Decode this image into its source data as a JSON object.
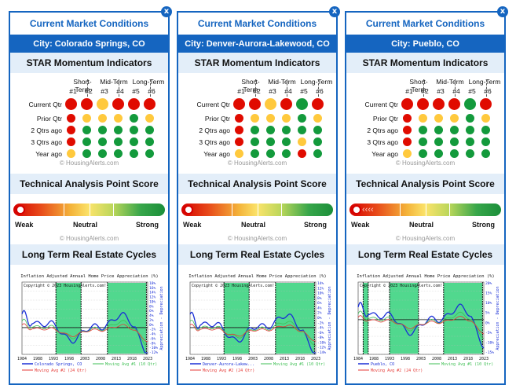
{
  "close_glyph": "x",
  "cards": [
    {
      "header": "Current Market Conditions",
      "city": "City: Colorado Springs, CO",
      "star_title": "STAR Momentum Indicators",
      "term_labels": [
        "Short-Term",
        "Mid-Term",
        "Long-Term"
      ],
      "indicator_numbers": [
        "#1",
        "#2",
        "#3",
        "#4",
        "#5",
        "#6"
      ],
      "row_labels": [
        "Current Qtr",
        "Prior Qtr",
        "2 Qtrs ago",
        "3 Qtrs ago",
        "Year ago"
      ],
      "indicators": [
        [
          "red",
          "red",
          "yellow",
          "red",
          "red",
          "red"
        ],
        [
          "red",
          "yellow",
          "yellow",
          "yellow",
          "green",
          "yellow"
        ],
        [
          "red",
          "green",
          "green",
          "green",
          "green",
          "green"
        ],
        [
          "red",
          "green",
          "green",
          "green",
          "green",
          "green"
        ],
        [
          "yellow",
          "green",
          "green",
          "green",
          "green",
          "green"
        ]
      ],
      "star_credit": "© HousingAlerts.com",
      "tech_title": "Technical Analysis Point Score",
      "score_labels": [
        "Weak",
        "Neutral",
        "Strong"
      ],
      "score_marker": "knob",
      "tech_credit": "© HousingAlerts.com",
      "cycles_title": "Long Term Real Estate Cycles",
      "chart_title": "Inflation Adjusted Annual Home Price Appreciation (%)",
      "chart_copyright": "Copyright © 2023 HousingAlerts.com!",
      "x_ticks": [
        "1984",
        "1988",
        "1993",
        "1998",
        "2003",
        "2008",
        "2013",
        "2018",
        "2023"
      ],
      "y_ticks": [
        "18%",
        "16%",
        "14%",
        "12%",
        "10%",
        "8%",
        "6%",
        "4%",
        "2%",
        "0%",
        "-2%",
        "-4%",
        "-6%",
        "-8%",
        "-10%",
        "-12%"
      ],
      "axis_right_label": "Appreciation - Depreciation",
      "legend": [
        "Colorado Springs, CO",
        "Moving Avg #1 (10 Qtr)",
        "Moving Avg #2 (24 Qtr)"
      ]
    },
    {
      "header": "Current Market Conditions",
      "city": "City: Denver-Aurora-Lakewood, CO",
      "star_title": "STAR Momentum Indicators",
      "term_labels": [
        "Short-Term",
        "Mid-Term",
        "Long-Term"
      ],
      "indicator_numbers": [
        "#1",
        "#2",
        "#3",
        "#4",
        "#5",
        "#6"
      ],
      "row_labels": [
        "Current Qtr",
        "Prior Qtr",
        "2 Qtrs ago",
        "3 Qtrs ago",
        "Year ago"
      ],
      "indicators": [
        [
          "red",
          "red",
          "yellow",
          "red",
          "green",
          "red"
        ],
        [
          "red",
          "yellow",
          "yellow",
          "yellow",
          "green",
          "yellow"
        ],
        [
          "red",
          "green",
          "green",
          "green",
          "green",
          "green"
        ],
        [
          "red",
          "green",
          "green",
          "green",
          "yellow",
          "green"
        ],
        [
          "yellow",
          "green",
          "green",
          "green",
          "red",
          "green"
        ]
      ],
      "star_credit": "© HousingAlerts.com",
      "tech_title": "Technical Analysis Point Score",
      "score_labels": [
        "Weak",
        "Neutral",
        "Strong"
      ],
      "score_marker": "knob",
      "tech_credit": "© HousingAlerts.com",
      "cycles_title": "Long Term Real Estate Cycles",
      "chart_title": "Inflation Adjusted Annual Home Price Appreciation (%)",
      "chart_copyright": "Copyright © 2023 HousingAlerts.com!",
      "x_ticks": [
        "1984",
        "1988",
        "1993",
        "1998",
        "2003",
        "2008",
        "2013",
        "2018",
        "2023"
      ],
      "y_ticks": [
        "14%",
        "12%",
        "10%",
        "8%",
        "6%",
        "4%",
        "2%",
        "0%",
        "-2%",
        "-4%",
        "-6%",
        "-8%",
        "-10%",
        "-12%",
        "-14%"
      ],
      "axis_right_label": "Appreciation - Depreciation",
      "legend": [
        "Denver-Aurora-Lakew...",
        "Moving Avg #1 (10 Qtr)",
        "Moving Avg #2 (24 Qtr)"
      ]
    },
    {
      "header": "Current Market Conditions",
      "city": "City: Pueblo, CO",
      "star_title": "STAR Momentum Indicators",
      "term_labels": [
        "Short-Term",
        "Mid-Term",
        "Long-Term"
      ],
      "indicator_numbers": [
        "#1",
        "#2",
        "#3",
        "#4",
        "#5",
        "#6"
      ],
      "row_labels": [
        "Current Qtr",
        "Prior Qtr",
        "2 Qtrs ago",
        "3 Qtrs ago",
        "Year ago"
      ],
      "indicators": [
        [
          "red",
          "red",
          "red",
          "red",
          "green",
          "red"
        ],
        [
          "red",
          "yellow",
          "yellow",
          "yellow",
          "green",
          "yellow"
        ],
        [
          "red",
          "green",
          "green",
          "green",
          "green",
          "green"
        ],
        [
          "red",
          "green",
          "green",
          "green",
          "green",
          "green"
        ],
        [
          "yellow",
          "green",
          "green",
          "green",
          "green",
          "green"
        ]
      ],
      "star_credit": "© HousingAlerts.com",
      "tech_title": "Technical Analysis Point Score",
      "score_labels": [
        "Weak",
        "Neutral",
        "Strong"
      ],
      "score_marker": "arrows",
      "tech_credit": "© HousingAlerts.com",
      "cycles_title": "Long Term Real Estate Cycles",
      "chart_title": "Inflation Adjusted Annual Home Price Appreciation (%)",
      "chart_copyright": "Copyright © 2023 HousingAlerts.com!",
      "x_ticks": [
        "1984",
        "1988",
        "1993",
        "1998",
        "2003",
        "2008",
        "2013",
        "2018",
        "2023"
      ],
      "y_ticks": [
        "20%",
        "15%",
        "10%",
        "5%",
        "0%",
        "-5%",
        "-10%",
        "-15%"
      ],
      "axis_right_label": "Appreciation - Depreciation",
      "legend": [
        "Pueblo, CO",
        "Moving Avg #1 (10 Qtr)",
        "Moving Avg #2 (24 Qtr)"
      ]
    }
  ]
}
